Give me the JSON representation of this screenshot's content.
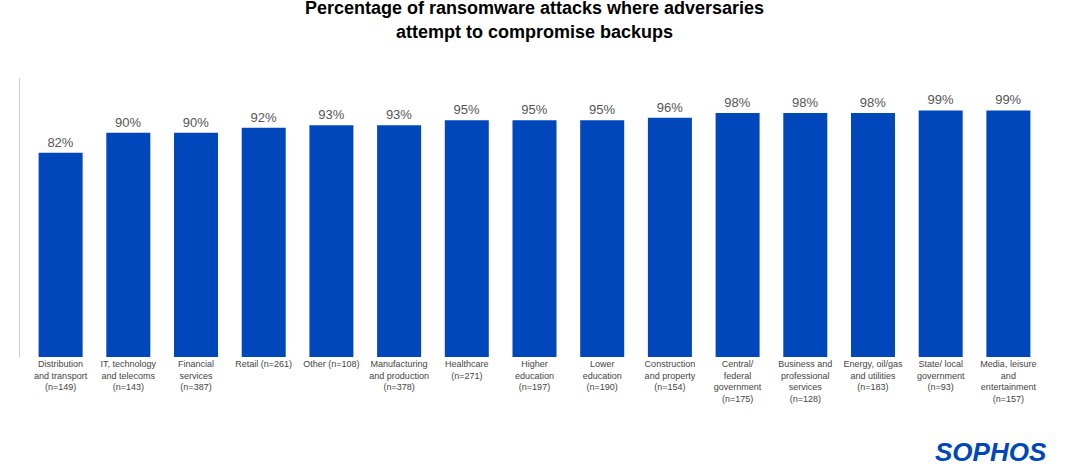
{
  "chart_data": {
    "type": "bar",
    "title": "Percentage of ransomware attacks where adversaries\nattempt to compromise backups",
    "categories": [
      "Distribution\nand transport\n(n=149)",
      "IT, technology\nand telecoms\n(n=143)",
      "Financial\nservices\n(n=387)",
      "Retail (n=261)",
      "Other (n=108)",
      "Manufacturing\nand production\n(n=378)",
      "Healthcare\n(n=271)",
      "Higher\neducation\n(n=197)",
      "Lower\neducation\n(n=190)",
      "Construction\nand property\n(n=154)",
      "Central/\nfederal\ngovernment\n(n=175)",
      "Business and\nprofessional\nservices\n(n=128)",
      "Energy, oil/gas\nand utilities\n(n=183)",
      "State/ local\ngovernment\n(n=93)",
      "Media, leisure\nand\nentertainment\n(n=157)"
    ],
    "values": [
      82,
      90,
      90,
      92,
      93,
      93,
      95,
      95,
      95,
      96,
      98,
      98,
      98,
      99,
      99
    ],
    "value_labels": [
      "82%",
      "90%",
      "90%",
      "92%",
      "93%",
      "93%",
      "95%",
      "95%",
      "95%",
      "96%",
      "98%",
      "98%",
      "98%",
      "99%",
      "99%"
    ],
    "data_labels": true,
    "color": "#0047BB",
    "ylim": [
      0,
      112
    ],
    "tick_labels": "x",
    "grid": false,
    "annotations": [
      {
        "text": "SOPHOS",
        "color": "#0047BB"
      }
    ]
  }
}
